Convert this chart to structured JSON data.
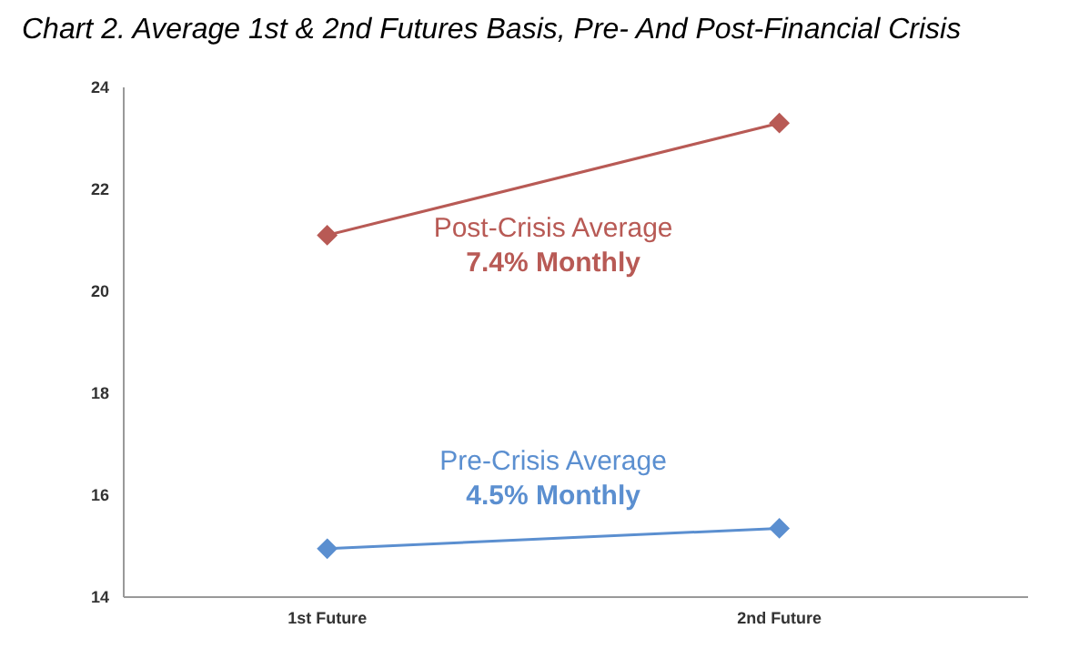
{
  "chart_data": {
    "type": "line",
    "title": "Chart 2.  Average 1st & 2nd Futures Basis, Pre- And Post-Financial Crisis",
    "categories": [
      "1st Future",
      "2nd Future"
    ],
    "series": [
      {
        "name": "Post-Crisis Average",
        "color": "#b85a55",
        "values": [
          21.1,
          23.3
        ]
      },
      {
        "name": "Pre-Crisis Average",
        "color": "#5b8fd0",
        "values": [
          14.95,
          15.35
        ]
      }
    ],
    "annotations": [
      "7.4% Monthly",
      "4.5% Monthly"
    ],
    "ylim": [
      14,
      24
    ],
    "yticks": [
      14,
      16,
      18,
      20,
      22,
      24
    ],
    "grid": false,
    "legend": false,
    "marker": "diamond",
    "line_style": "solid"
  }
}
